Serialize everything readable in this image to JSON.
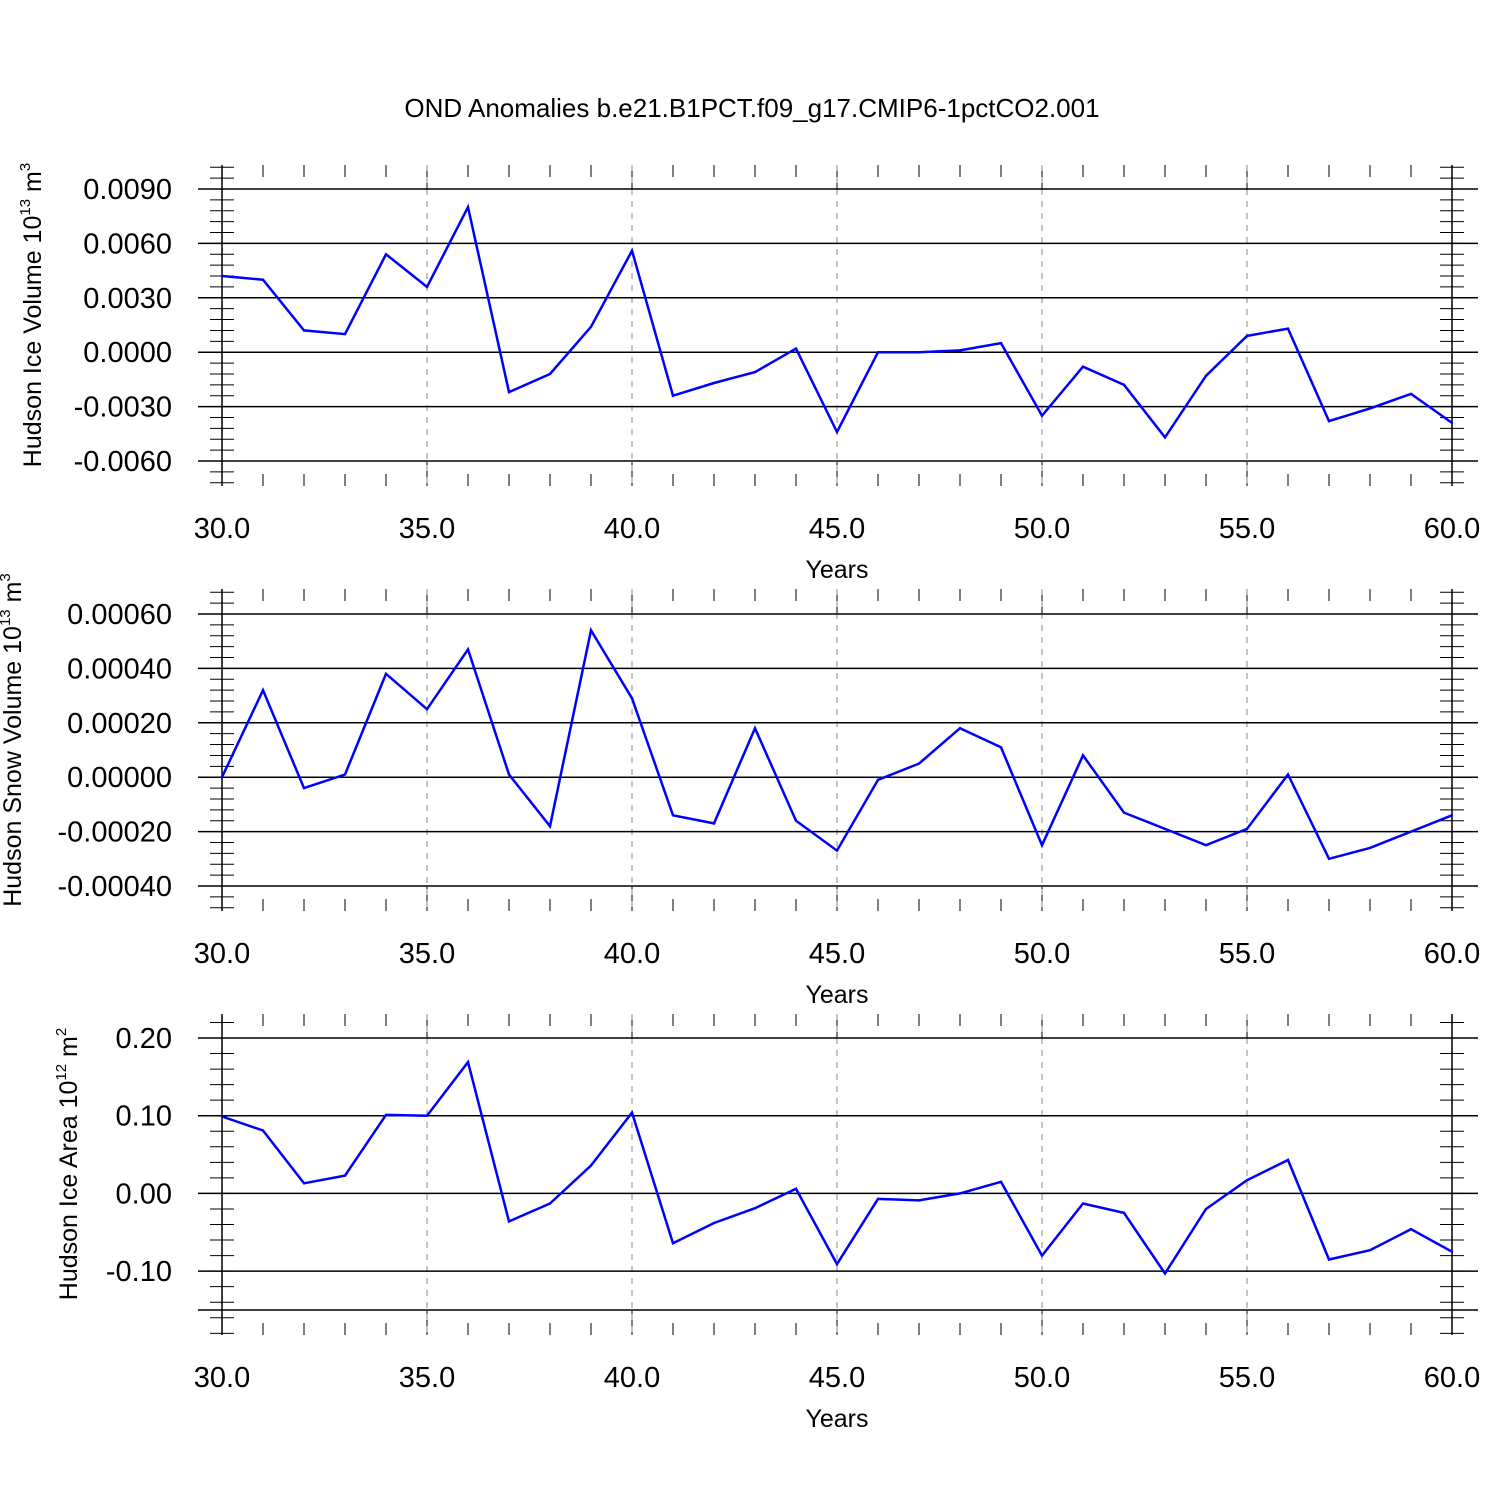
{
  "title": "OND Anomalies b.e21.B1PCT.f09_g17.CMIP6-1pctCO2.001",
  "chart_data": [
    {
      "type": "line",
      "ylabel": {
        "text": "Hudson Ice Volume 10",
        "exp": "13",
        "unit": " m",
        "unit_exp": "3"
      },
      "xlabel": "Years",
      "xlim": [
        30,
        60
      ],
      "ylim": [
        -0.006,
        0.0099
      ],
      "xticks": [
        "30.0",
        "35.0",
        "40.0",
        "45.0",
        "50.0",
        "55.0",
        "60.0"
      ],
      "yticks": [
        {
          "value": 0.009,
          "label": "0.0090"
        },
        {
          "value": 0.006,
          "label": "0.0060"
        },
        {
          "value": 0.003,
          "label": "0.0030"
        },
        {
          "value": 0.0,
          "label": "0.0000"
        },
        {
          "value": -0.003,
          "label": "-0.0030"
        },
        {
          "value": -0.006,
          "label": "-0.0060"
        }
      ],
      "grid": "vertical dashed at major x ticks",
      "color": "#0000ff",
      "x": [
        30,
        31,
        32,
        33,
        34,
        35,
        36,
        37,
        38,
        39,
        40,
        41,
        42,
        43,
        44,
        45,
        46,
        47,
        48,
        49,
        50,
        51,
        52,
        53,
        54,
        55,
        56,
        57,
        58,
        59,
        60
      ],
      "values": [
        0.0042,
        0.004,
        0.0012,
        0.001,
        0.0054,
        0.0036,
        0.008,
        -0.0022,
        -0.0012,
        0.0014,
        0.0056,
        -0.0024,
        -0.0017,
        -0.0011,
        0.0002,
        -0.0044,
        0.0,
        0.0,
        0.0001,
        0.0005,
        -0.0035,
        -0.0008,
        -0.0018,
        -0.0047,
        -0.0013,
        0.0009,
        0.0013,
        -0.0038,
        -0.0031,
        -0.0023,
        -0.0039
      ]
    },
    {
      "type": "line",
      "ylabel": {
        "text": "Hudson Snow Volume 10",
        "exp": "13",
        "unit": " m",
        "unit_exp": "3"
      },
      "xlabel": "Years",
      "xlim": [
        30,
        60
      ],
      "ylim": [
        -0.0004,
        0.0006
      ],
      "xticks": [
        "30.0",
        "35.0",
        "40.0",
        "45.0",
        "50.0",
        "55.0",
        "60.0"
      ],
      "yticks": [
        {
          "value": 0.0006,
          "label": "0.00060"
        },
        {
          "value": 0.0004,
          "label": "0.00040"
        },
        {
          "value": 0.0002,
          "label": "0.00020"
        },
        {
          "value": 0.0,
          "label": "0.00000"
        },
        {
          "value": -0.0002,
          "label": "-0.00020"
        },
        {
          "value": -0.0004,
          "label": "-0.00040"
        }
      ],
      "grid": "vertical dashed at major x ticks",
      "color": "#0000ff",
      "x": [
        30,
        31,
        32,
        33,
        34,
        35,
        36,
        37,
        38,
        39,
        40,
        41,
        42,
        43,
        44,
        45,
        46,
        47,
        48,
        49,
        50,
        51,
        52,
        53,
        54,
        55,
        56,
        57,
        58,
        59,
        60
      ],
      "values": [
        0.0,
        0.00032,
        -4e-05,
        1e-05,
        0.00038,
        0.00025,
        0.00047,
        1e-05,
        -0.00018,
        0.00054,
        0.00029,
        -0.00014,
        -0.00017,
        0.00018,
        -0.00016,
        -0.00027,
        -1e-05,
        5e-05,
        0.00018,
        0.00011,
        -0.00025,
        8e-05,
        -0.00013,
        -0.00019,
        -0.00025,
        -0.00019,
        1e-05,
        -0.0003,
        -0.00026,
        -0.0002,
        -0.00014
      ]
    },
    {
      "type": "line",
      "ylabel": {
        "text": "Hudson Ice Area 10",
        "exp": "12",
        "unit": " m",
        "unit_exp": "2"
      },
      "xlabel": "Years",
      "xlim": [
        30,
        60
      ],
      "ylim": [
        -0.15,
        0.2
      ],
      "xticks": [
        "30.0",
        "35.0",
        "40.0",
        "45.0",
        "50.0",
        "55.0",
        "60.0"
      ],
      "yticks": [
        {
          "value": 0.2,
          "label": "0.20"
        },
        {
          "value": 0.1,
          "label": "0.10"
        },
        {
          "value": 0.0,
          "label": "0.00"
        },
        {
          "value": -0.1,
          "label": "-0.10"
        }
      ],
      "grid": "vertical dashed at major x ticks",
      "color": "#0000ff",
      "x": [
        30,
        31,
        32,
        33,
        34,
        35,
        36,
        37,
        38,
        39,
        40,
        41,
        42,
        43,
        44,
        45,
        46,
        47,
        48,
        49,
        50,
        51,
        52,
        53,
        54,
        55,
        56,
        57,
        58,
        59,
        60
      ],
      "values": [
        0.099,
        0.081,
        0.013,
        0.023,
        0.101,
        0.1,
        0.169,
        -0.036,
        -0.013,
        0.036,
        0.104,
        -0.064,
        -0.038,
        -0.019,
        0.006,
        -0.091,
        -0.007,
        -0.009,
        0.0,
        0.015,
        -0.08,
        -0.013,
        -0.025,
        -0.103,
        -0.02,
        0.017,
        0.043,
        -0.085,
        -0.073,
        -0.046,
        -0.075
      ]
    }
  ]
}
